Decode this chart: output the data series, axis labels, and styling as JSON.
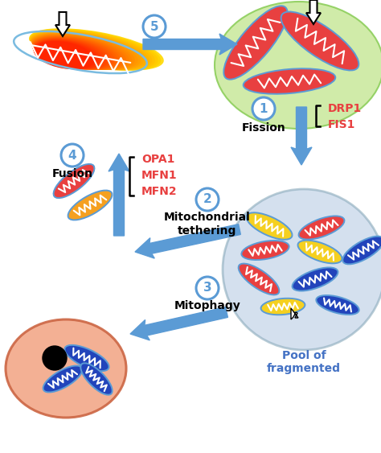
{
  "bg": "#ffffff",
  "blue": "#5b9bd5",
  "red": "#e84040",
  "orange": "#f5a020",
  "yellow": "#f5d020",
  "blue_mito": "#2244bb",
  "green_bg": "#c8e89a",
  "pool_bg": "#b8cce4",
  "lyso_bg": "#f2a888",
  "lyso_border": "#cc6644",
  "label_red": "#e84040",
  "label_blue": "#4472c4",
  "step1": "Fission",
  "step2line1": "Mitochondrial",
  "step2line2": "tethering",
  "step3": "Mitophagy",
  "step4": "Fusion",
  "drp1_fis1": "DRP1\nFIS1",
  "opa1_mfn": "OPA1\nMFN1\nMFN2",
  "pool_text": "Pool of\nfragmented",
  "mito_border": "#5b9bd5"
}
